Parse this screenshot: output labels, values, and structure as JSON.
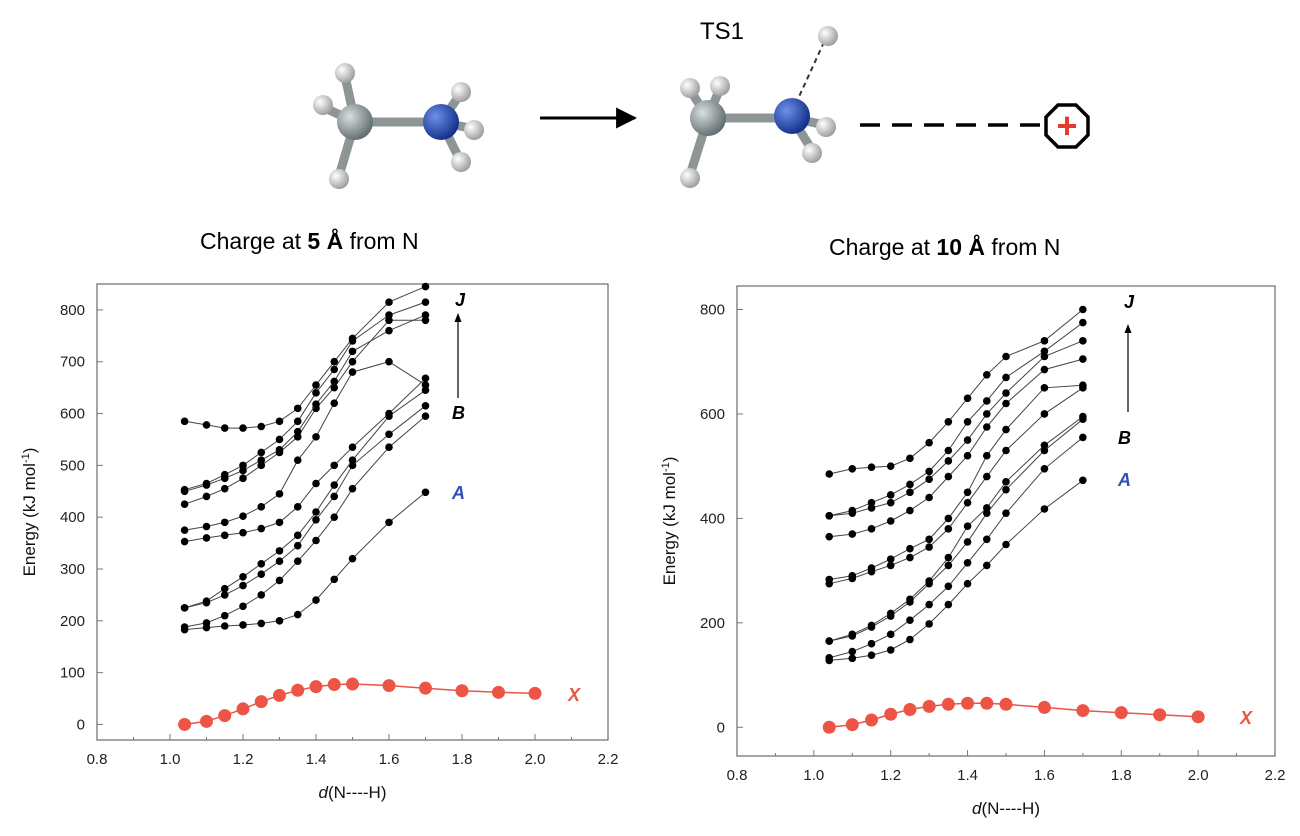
{
  "scheme": {
    "ts_label": "TS1",
    "charge_symbol": "+"
  },
  "colors": {
    "series_x": "#ec5446",
    "series_a_label": "#2f4fb5",
    "nitrogen": "#2147a8",
    "carbon": "#8a9496",
    "hydrogen": "#e6e6e6",
    "charge_cross": "#e53a2e",
    "series_black": "#000000"
  },
  "chart_data": [
    {
      "type": "line",
      "title_prefix": "Charge at ",
      "title_bold": "5 Å",
      "title_suffix": " from N",
      "xlabel_italic": "d",
      "xlabel_rest": "(N----H)",
      "ylabel": "Energy (kJ mol",
      "ylabel_sup": "-1",
      "ylabel_close": ")",
      "xlim": [
        0.8,
        2.2
      ],
      "ylim": [
        -30,
        850
      ],
      "x_ticks": [
        "0.8",
        "1.0",
        "1.2",
        "1.4",
        "1.6",
        "1.8",
        "2.0",
        "2.2"
      ],
      "y_ticks": [
        "0",
        "100",
        "200",
        "300",
        "400",
        "500",
        "600",
        "700",
        "800"
      ],
      "series_x": {
        "x": [
          1.04,
          1.1,
          1.15,
          1.2,
          1.25,
          1.3,
          1.35,
          1.4,
          1.45,
          1.5,
          1.6,
          1.7,
          1.8,
          1.9,
          2.0
        ],
        "y": [
          0,
          6,
          17,
          30,
          44,
          56,
          66,
          73,
          77,
          78,
          75,
          70,
          65,
          62,
          60
        ]
      },
      "x_excited": [
        1.04,
        1.1,
        1.15,
        1.2,
        1.25,
        1.3,
        1.35,
        1.4,
        1.45,
        1.5,
        1.6,
        1.7
      ],
      "excited_series": [
        [
          183,
          187,
          190,
          192,
          195,
          200,
          212,
          240,
          280,
          320,
          390,
          448
        ],
        [
          188,
          196,
          210,
          228,
          250,
          278,
          315,
          355,
          400,
          455,
          535,
          595
        ],
        [
          225,
          235,
          250,
          268,
          290,
          315,
          345,
          395,
          440,
          500,
          560,
          615
        ],
        [
          225,
          238,
          262,
          285,
          310,
          335,
          365,
          410,
          462,
          510,
          595,
          645
        ],
        [
          353,
          360,
          365,
          370,
          378,
          390,
          420,
          465,
          500,
          535,
          600,
          668
        ],
        [
          375,
          382,
          390,
          402,
          420,
          445,
          510,
          555,
          620,
          680,
          700,
          655
        ],
        [
          425,
          440,
          455,
          475,
          500,
          525,
          555,
          610,
          650,
          700,
          780,
          780
        ],
        [
          450,
          462,
          475,
          490,
          510,
          530,
          565,
          618,
          662,
          720,
          760,
          790
        ],
        [
          453,
          465,
          482,
          500,
          525,
          550,
          585,
          640,
          685,
          740,
          790,
          815
        ],
        [
          585,
          578,
          572,
          572,
          575,
          585,
          610,
          655,
          700,
          745,
          815,
          845
        ]
      ],
      "label_j": "J",
      "label_b": "B",
      "label_a": "A",
      "label_x": "X"
    },
    {
      "type": "line",
      "title_prefix": "Charge at ",
      "title_bold": "10 Å",
      "title_suffix": " from N",
      "xlabel_italic": "d",
      "xlabel_rest": "(N----H)",
      "ylabel": "Energy (kJ mol",
      "ylabel_sup": "-1",
      "ylabel_close": ")",
      "xlim": [
        0.8,
        2.2
      ],
      "ylim": [
        -55,
        845
      ],
      "x_ticks": [
        "0.8",
        "1.0",
        "1.2",
        "1.4",
        "1.6",
        "1.8",
        "2.0",
        "2.2"
      ],
      "y_ticks": [
        "0",
        "200",
        "400",
        "600",
        "800"
      ],
      "series_x": {
        "x": [
          1.04,
          1.1,
          1.15,
          1.2,
          1.25,
          1.3,
          1.35,
          1.4,
          1.45,
          1.5,
          1.6,
          1.7,
          1.8,
          1.9,
          2.0
        ],
        "y": [
          0,
          5,
          14,
          25,
          34,
          40,
          44,
          46,
          46,
          44,
          38,
          32,
          28,
          24,
          20
        ]
      },
      "x_excited": [
        1.04,
        1.1,
        1.15,
        1.2,
        1.25,
        1.3,
        1.35,
        1.4,
        1.45,
        1.5,
        1.6,
        1.7
      ],
      "excited_series": [
        [
          128,
          132,
          138,
          148,
          168,
          198,
          235,
          275,
          310,
          350,
          418,
          473
        ],
        [
          133,
          145,
          160,
          178,
          205,
          235,
          270,
          315,
          360,
          410,
          495,
          555
        ],
        [
          165,
          175,
          192,
          213,
          240,
          275,
          310,
          355,
          410,
          455,
          530,
          590
        ],
        [
          165,
          178,
          195,
          218,
          245,
          280,
          325,
          385,
          420,
          470,
          540,
          595
        ],
        [
          275,
          285,
          298,
          310,
          325,
          345,
          380,
          430,
          480,
          530,
          600,
          650
        ],
        [
          283,
          290,
          305,
          322,
          342,
          360,
          400,
          450,
          520,
          570,
          650,
          655
        ],
        [
          365,
          370,
          380,
          395,
          415,
          440,
          480,
          520,
          575,
          620,
          685,
          705
        ],
        [
          405,
          410,
          420,
          430,
          450,
          475,
          510,
          550,
          600,
          640,
          710,
          740
        ],
        [
          405,
          415,
          430,
          445,
          465,
          490,
          530,
          585,
          625,
          670,
          720,
          775
        ],
        [
          485,
          495,
          498,
          500,
          515,
          545,
          585,
          630,
          675,
          710,
          740,
          800
        ]
      ],
      "label_j": "J",
      "label_b": "B",
      "label_a": "A",
      "label_x": "X"
    }
  ]
}
